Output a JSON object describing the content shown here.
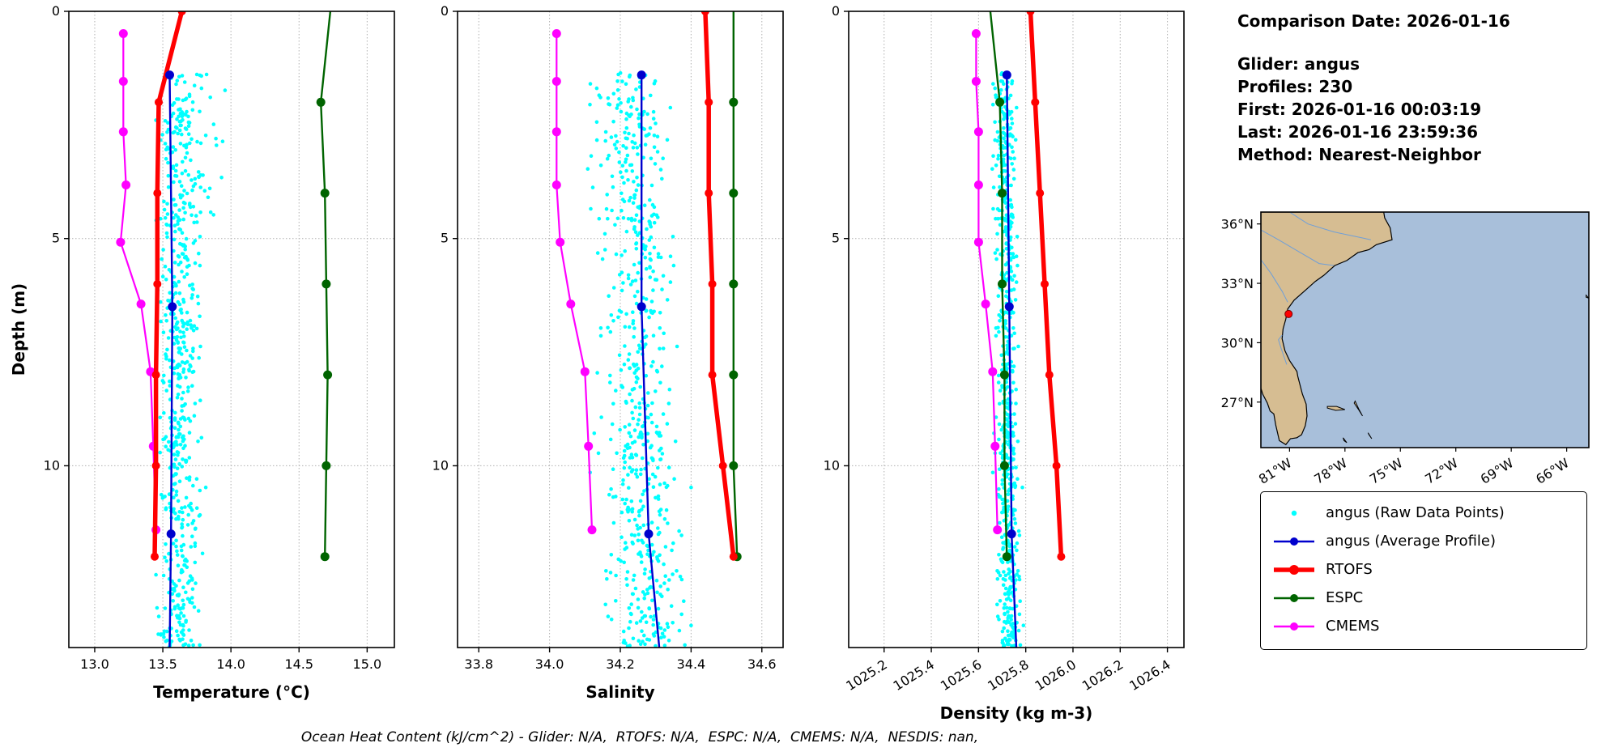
{
  "info_panel": {
    "title": "Comparison Date: 2026-01-16",
    "lines": [
      "Glider: angus",
      "Profiles: 230",
      "First: 2026-01-16 00:03:19",
      "Last: 2026-01-16 23:59:36",
      "Method: Nearest-Neighbor"
    ]
  },
  "footer": "Ocean Heat Content (kJ/cm^2) - Glider: N/A,  RTOFS: N/A,  ESPC: N/A,  CMEMS: N/A,  NESDIS: nan,",
  "colors": {
    "raw": "#00ffff",
    "avg": "#0000cd",
    "rtofs": "#ff0000",
    "espc": "#006400",
    "cmems": "#ff00ff",
    "grid": "#b0b0b0",
    "frame": "#000000",
    "land": "#d6bd92",
    "ocean": "#a8bfda",
    "coast": "#000000",
    "river": "#6f9fd8",
    "glider_dot": "#ff0000"
  },
  "legend": {
    "items": [
      {
        "label": "angus (Raw Data Points)",
        "color_key": "raw",
        "type": "scatter"
      },
      {
        "label": "angus (Average Profile)",
        "color_key": "avg",
        "type": "line",
        "lw": 2.5,
        "marker_r": 5
      },
      {
        "label": "RTOFS",
        "color_key": "rtofs",
        "type": "line",
        "lw": 5.5,
        "marker_r": 6
      },
      {
        "label": "ESPC",
        "color_key": "espc",
        "type": "line",
        "lw": 2.5,
        "marker_r": 5
      },
      {
        "label": "CMEMS",
        "color_key": "cmems",
        "type": "line",
        "lw": 2.5,
        "marker_r": 5
      }
    ]
  },
  "chart_data": [
    {
      "id": "temperature",
      "type": "scatter+line",
      "xlabel": "Temperature (°C)",
      "ylabel": "Depth (m)",
      "xlim": [
        12.81,
        15.2
      ],
      "ylim": [
        0,
        14
      ],
      "xticks": [
        13.0,
        13.5,
        14.0,
        14.5,
        15.0
      ],
      "xtick_labels": [
        "13.0",
        "13.5",
        "14.0",
        "14.5",
        "15.0"
      ],
      "yticks": [
        0,
        5,
        10
      ],
      "rotate_xticks": false,
      "raw_scatter": {
        "n": 620,
        "center": 13.62,
        "spread": 0.07,
        "drift": 0.0,
        "shallow_tail": 0.3,
        "depth_min": 1.35,
        "depth_max": 14.0,
        "clamp": [
          13.45,
          14.0
        ]
      },
      "series": [
        {
          "name": "CMEMS",
          "color_key": "cmems",
          "lw": 2.2,
          "marker_r": 5.5,
          "depths": [
            0.49,
            1.54,
            2.65,
            3.82,
            5.08,
            6.44,
            7.93,
            9.57,
            11.41
          ],
          "values": [
            13.21,
            13.21,
            13.21,
            13.23,
            13.19,
            13.34,
            13.41,
            13.43,
            13.45
          ]
        },
        {
          "name": "ESPC",
          "color_key": "espc",
          "lw": 2.4,
          "marker_r": 5.5,
          "depths": [
            0,
            2,
            4,
            6,
            8,
            10,
            12
          ],
          "values": [
            14.73,
            14.66,
            14.69,
            14.7,
            14.71,
            14.7,
            14.69
          ],
          "marker_mask": [
            0,
            1,
            1,
            1,
            1,
            1,
            1
          ]
        },
        {
          "name": "RTOFS",
          "color_key": "rtofs",
          "lw": 5.5,
          "marker_r": 5,
          "depths": [
            0,
            2,
            4,
            6,
            8,
            10,
            12
          ],
          "values": [
            13.64,
            13.47,
            13.46,
            13.46,
            13.45,
            13.45,
            13.44
          ]
        },
        {
          "name": "angus (Average Profile)",
          "color_key": "avg",
          "lw": 2.4,
          "marker_r": 5.5,
          "depths": [
            1.4,
            6.5,
            11.5,
            14.0
          ],
          "values": [
            13.55,
            13.57,
            13.56,
            13.55
          ],
          "marker_mask": [
            1,
            1,
            1,
            0
          ]
        }
      ]
    },
    {
      "id": "salinity",
      "type": "scatter+line",
      "xlabel": "Salinity",
      "ylabel": "",
      "xlim": [
        33.74,
        34.66
      ],
      "ylim": [
        0,
        14
      ],
      "xticks": [
        33.8,
        34.0,
        34.2,
        34.4,
        34.6
      ],
      "xtick_labels": [
        "33.8",
        "34.0",
        "34.2",
        "34.4",
        "34.6"
      ],
      "yticks": [
        0,
        5,
        10
      ],
      "rotate_xticks": false,
      "raw_scatter": {
        "n": 620,
        "center": 34.25,
        "spread": 0.05,
        "drift": 0.05,
        "shallow_tail": 0.0,
        "depth_min": 1.35,
        "depth_max": 14.0,
        "clamp": [
          34.08,
          34.4
        ]
      },
      "series": [
        {
          "name": "CMEMS",
          "color_key": "cmems",
          "lw": 2.2,
          "marker_r": 5.5,
          "depths": [
            0.49,
            1.54,
            2.65,
            3.82,
            5.08,
            6.44,
            7.93,
            9.57,
            11.41
          ],
          "values": [
            34.02,
            34.02,
            34.02,
            34.02,
            34.03,
            34.06,
            34.1,
            34.11,
            34.12
          ]
        },
        {
          "name": "ESPC",
          "color_key": "espc",
          "lw": 2.4,
          "marker_r": 5.5,
          "depths": [
            0,
            2,
            4,
            6,
            8,
            10,
            12
          ],
          "values": [
            34.52,
            34.52,
            34.52,
            34.52,
            34.52,
            34.52,
            34.53
          ],
          "marker_mask": [
            0,
            1,
            1,
            1,
            1,
            1,
            1
          ]
        },
        {
          "name": "RTOFS",
          "color_key": "rtofs",
          "lw": 5.5,
          "marker_r": 5,
          "depths": [
            0,
            2,
            4,
            6,
            8,
            10,
            12
          ],
          "values": [
            34.44,
            34.45,
            34.45,
            34.46,
            34.46,
            34.49,
            34.52
          ]
        },
        {
          "name": "angus (Average Profile)",
          "color_key": "avg",
          "lw": 2.4,
          "marker_r": 5.5,
          "depths": [
            1.4,
            6.5,
            11.5,
            14.0
          ],
          "values": [
            34.26,
            34.26,
            34.28,
            34.31
          ],
          "marker_mask": [
            1,
            1,
            1,
            0
          ]
        }
      ]
    },
    {
      "id": "density",
      "type": "scatter+line",
      "xlabel": "Density (kg m-3)",
      "ylabel": "",
      "xlim": [
        1025.05,
        1026.47
      ],
      "ylim": [
        0,
        14
      ],
      "xticks": [
        1025.2,
        1025.4,
        1025.6,
        1025.8,
        1026.0,
        1026.2,
        1026.4
      ],
      "xtick_labels": [
        "1025.2",
        "1025.4",
        "1025.6",
        "1025.8",
        "1026.0",
        "1026.2",
        "1026.4"
      ],
      "yticks": [
        0,
        5,
        10
      ],
      "rotate_xticks": true,
      "raw_scatter": {
        "n": 620,
        "center": 1025.72,
        "spread": 0.022,
        "drift": 0.02,
        "shallow_tail": 0.0,
        "depth_min": 1.35,
        "depth_max": 14.0,
        "clamp": [
          1025.64,
          1025.8
        ]
      },
      "series": [
        {
          "name": "CMEMS",
          "color_key": "cmems",
          "lw": 2.2,
          "marker_r": 5.5,
          "depths": [
            0.49,
            1.54,
            2.65,
            3.82,
            5.08,
            6.44,
            7.93,
            9.57,
            11.41
          ],
          "values": [
            1025.59,
            1025.59,
            1025.6,
            1025.6,
            1025.6,
            1025.63,
            1025.66,
            1025.67,
            1025.68
          ]
        },
        {
          "name": "ESPC",
          "color_key": "espc",
          "lw": 2.4,
          "marker_r": 5.5,
          "depths": [
            0,
            2,
            4,
            6,
            8,
            10,
            12
          ],
          "values": [
            1025.65,
            1025.69,
            1025.7,
            1025.7,
            1025.71,
            1025.71,
            1025.72
          ],
          "marker_mask": [
            0,
            1,
            1,
            1,
            1,
            1,
            1
          ]
        },
        {
          "name": "RTOFS",
          "color_key": "rtofs",
          "lw": 5.5,
          "marker_r": 5,
          "depths": [
            0,
            2,
            4,
            6,
            8,
            10,
            12
          ],
          "values": [
            1025.82,
            1025.84,
            1025.86,
            1025.88,
            1025.9,
            1025.93,
            1025.95
          ]
        },
        {
          "name": "angus (Average Profile)",
          "color_key": "avg",
          "lw": 2.4,
          "marker_r": 5.5,
          "depths": [
            1.4,
            6.5,
            11.5,
            14.0
          ],
          "values": [
            1025.72,
            1025.73,
            1025.74,
            1025.76
          ],
          "marker_mask": [
            1,
            1,
            1,
            0
          ]
        }
      ]
    },
    {
      "id": "map",
      "type": "map",
      "extent": {
        "lon": [
          -82.55,
          -64.8
        ],
        "lat": [
          24.7,
          36.6
        ]
      },
      "lon_ticks": [
        -81,
        -78,
        -75,
        -72,
        -69,
        -66
      ],
      "lon_tick_labels": [
        "81°W",
        "78°W",
        "75°W",
        "72°W",
        "69°W",
        "66°W"
      ],
      "lat_ticks": [
        36,
        33,
        30,
        27
      ],
      "lat_tick_labels": [
        "36°N",
        "33°N",
        "30°N",
        "27°N"
      ],
      "glider_position": {
        "lon": -81.05,
        "lat": 31.45
      },
      "coastline": [
        [
          -82.55,
          36.6
        ],
        [
          -75.9,
          36.6
        ],
        [
          -75.85,
          36.3
        ],
        [
          -75.55,
          35.8
        ],
        [
          -75.45,
          35.2
        ],
        [
          -76.3,
          34.95
        ],
        [
          -76.7,
          34.7
        ],
        [
          -77.3,
          34.55
        ],
        [
          -77.9,
          34.15
        ],
        [
          -78.55,
          33.9
        ],
        [
          -79.15,
          33.4
        ],
        [
          -79.6,
          33.1
        ],
        [
          -80.2,
          32.6
        ],
        [
          -80.75,
          32.15
        ],
        [
          -81.1,
          31.7
        ],
        [
          -81.2,
          31.2
        ],
        [
          -81.35,
          30.7
        ],
        [
          -81.4,
          30.2
        ],
        [
          -81.25,
          29.6
        ],
        [
          -81.0,
          29.1
        ],
        [
          -80.6,
          28.55
        ],
        [
          -80.55,
          28.3
        ],
        [
          -80.3,
          27.4
        ],
        [
          -80.1,
          26.9
        ],
        [
          -80.05,
          26.3
        ],
        [
          -80.15,
          25.8
        ],
        [
          -80.35,
          25.35
        ],
        [
          -80.6,
          25.2
        ],
        [
          -80.95,
          25.15
        ],
        [
          -81.2,
          24.85
        ],
        [
          -81.55,
          25.05
        ],
        [
          -81.75,
          25.85
        ],
        [
          -81.85,
          26.4
        ],
        [
          -82.05,
          26.55
        ],
        [
          -82.2,
          26.95
        ],
        [
          -82.45,
          27.4
        ],
        [
          -82.55,
          27.7
        ]
      ],
      "islands": [
        [
          [
            -78.95,
            26.7
          ],
          [
            -78.5,
            26.58
          ],
          [
            -78.0,
            26.62
          ],
          [
            -78.45,
            26.78
          ],
          [
            -78.95,
            26.78
          ]
        ],
        [
          [
            -77.5,
            26.95
          ],
          [
            -77.25,
            26.6
          ],
          [
            -77.05,
            26.3
          ],
          [
            -77.25,
            26.65
          ],
          [
            -77.45,
            27.05
          ]
        ],
        [
          [
            -78.1,
            25.2
          ],
          [
            -77.9,
            24.95
          ],
          [
            -78.05,
            25.05
          ]
        ],
        [
          [
            -76.75,
            25.45
          ],
          [
            -76.55,
            25.15
          ],
          [
            -76.7,
            25.35
          ]
        ],
        [
          [
            -64.95,
            32.4
          ],
          [
            -64.8,
            32.25
          ],
          [
            -64.95,
            32.3
          ]
        ]
      ],
      "rivers": [
        [
          [
            -82.55,
            34.2
          ],
          [
            -82.0,
            33.5
          ],
          [
            -81.4,
            32.6
          ],
          [
            -81.1,
            32.05
          ]
        ],
        [
          [
            -82.55,
            35.7
          ],
          [
            -81.6,
            35.2
          ],
          [
            -80.5,
            34.6
          ],
          [
            -79.4,
            34.0
          ],
          [
            -78.6,
            33.9
          ]
        ],
        [
          [
            -81.0,
            36.6
          ],
          [
            -80.0,
            36.0
          ],
          [
            -78.6,
            35.6
          ],
          [
            -77.1,
            35.3
          ],
          [
            -76.6,
            35.2
          ]
        ],
        [
          [
            -81.15,
            28.9
          ],
          [
            -81.45,
            29.7
          ],
          [
            -81.6,
            30.15
          ],
          [
            -81.4,
            30.38
          ]
        ]
      ]
    }
  ]
}
